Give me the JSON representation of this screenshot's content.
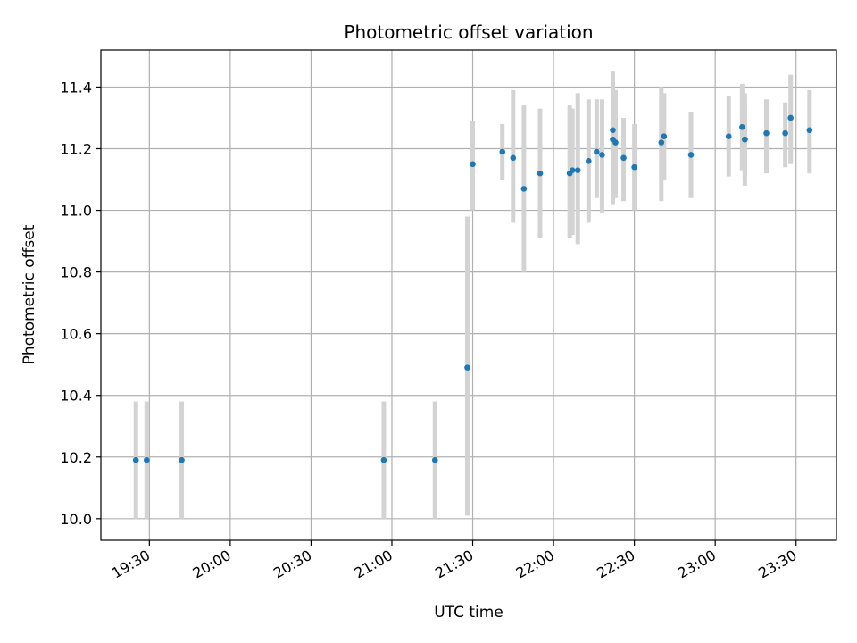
{
  "chart_data": {
    "type": "scatter",
    "title": "Photometric offset variation",
    "xlabel": "UTC time",
    "ylabel": "Photometric offset",
    "grid": true,
    "xlim": [
      "19:12",
      "23:45"
    ],
    "ylim": [
      9.93,
      11.52
    ],
    "x_ticks": [
      "19:30",
      "20:00",
      "20:30",
      "21:00",
      "21:30",
      "22:00",
      "22:30",
      "23:00",
      "23:30"
    ],
    "y_ticks": [
      "10.0",
      "10.2",
      "10.4",
      "10.6",
      "10.8",
      "11.0",
      "11.2",
      "11.4"
    ],
    "marker_color": "#1f77b4",
    "errorbar_color": "#d3d3d3",
    "points": [
      {
        "x": "19:25",
        "y": 10.19,
        "low": 10.0,
        "high": 10.38
      },
      {
        "x": "19:29",
        "y": 10.19,
        "low": 10.0,
        "high": 10.38
      },
      {
        "x": "19:42",
        "y": 10.19,
        "low": 10.0,
        "high": 10.38
      },
      {
        "x": "20:57",
        "y": 10.19,
        "low": 10.0,
        "high": 10.38
      },
      {
        "x": "21:16",
        "y": 10.19,
        "low": 10.0,
        "high": 10.38
      },
      {
        "x": "21:28",
        "y": 10.49,
        "low": 10.01,
        "high": 10.98
      },
      {
        "x": "21:30",
        "y": 11.15,
        "low": 11.0,
        "high": 11.29
      },
      {
        "x": "21:41",
        "y": 11.19,
        "low": 11.1,
        "high": 11.28
      },
      {
        "x": "21:45",
        "y": 11.17,
        "low": 10.96,
        "high": 11.39
      },
      {
        "x": "21:49",
        "y": 11.07,
        "low": 10.8,
        "high": 11.34
      },
      {
        "x": "21:55",
        "y": 11.12,
        "low": 10.91,
        "high": 11.33
      },
      {
        "x": "22:06",
        "y": 11.12,
        "low": 10.91,
        "high": 11.34
      },
      {
        "x": "22:07",
        "y": 11.13,
        "low": 10.92,
        "high": 11.33
      },
      {
        "x": "22:09",
        "y": 11.13,
        "low": 10.89,
        "high": 11.38
      },
      {
        "x": "22:13",
        "y": 11.16,
        "low": 10.96,
        "high": 11.36
      },
      {
        "x": "22:16",
        "y": 11.19,
        "low": 11.04,
        "high": 11.36
      },
      {
        "x": "22:18",
        "y": 11.18,
        "low": 10.99,
        "high": 11.36
      },
      {
        "x": "22:22",
        "y": 11.26,
        "low": 11.08,
        "high": 11.45
      },
      {
        "x": "22:22",
        "y": 11.23,
        "low": 11.02,
        "high": 11.43
      },
      {
        "x": "22:23",
        "y": 11.22,
        "low": 11.04,
        "high": 11.39
      },
      {
        "x": "22:26",
        "y": 11.17,
        "low": 11.03,
        "high": 11.3
      },
      {
        "x": "22:30",
        "y": 11.14,
        "low": 11.0,
        "high": 11.28
      },
      {
        "x": "22:40",
        "y": 11.22,
        "low": 11.03,
        "high": 11.4
      },
      {
        "x": "22:41",
        "y": 11.24,
        "low": 11.1,
        "high": 11.38
      },
      {
        "x": "22:51",
        "y": 11.18,
        "low": 11.04,
        "high": 11.32
      },
      {
        "x": "23:05",
        "y": 11.24,
        "low": 11.11,
        "high": 11.37
      },
      {
        "x": "23:10",
        "y": 11.27,
        "low": 11.13,
        "high": 11.41
      },
      {
        "x": "23:11",
        "y": 11.23,
        "low": 11.08,
        "high": 11.38
      },
      {
        "x": "23:11",
        "y": 11.23,
        "low": 11.1,
        "high": 11.36
      },
      {
        "x": "23:19",
        "y": 11.25,
        "low": 11.12,
        "high": 11.36
      },
      {
        "x": "23:26",
        "y": 11.25,
        "low": 11.14,
        "high": 11.35
      },
      {
        "x": "23:28",
        "y": 11.3,
        "low": 11.15,
        "high": 11.44
      },
      {
        "x": "23:35",
        "y": 11.26,
        "low": 11.12,
        "high": 11.39
      }
    ]
  }
}
